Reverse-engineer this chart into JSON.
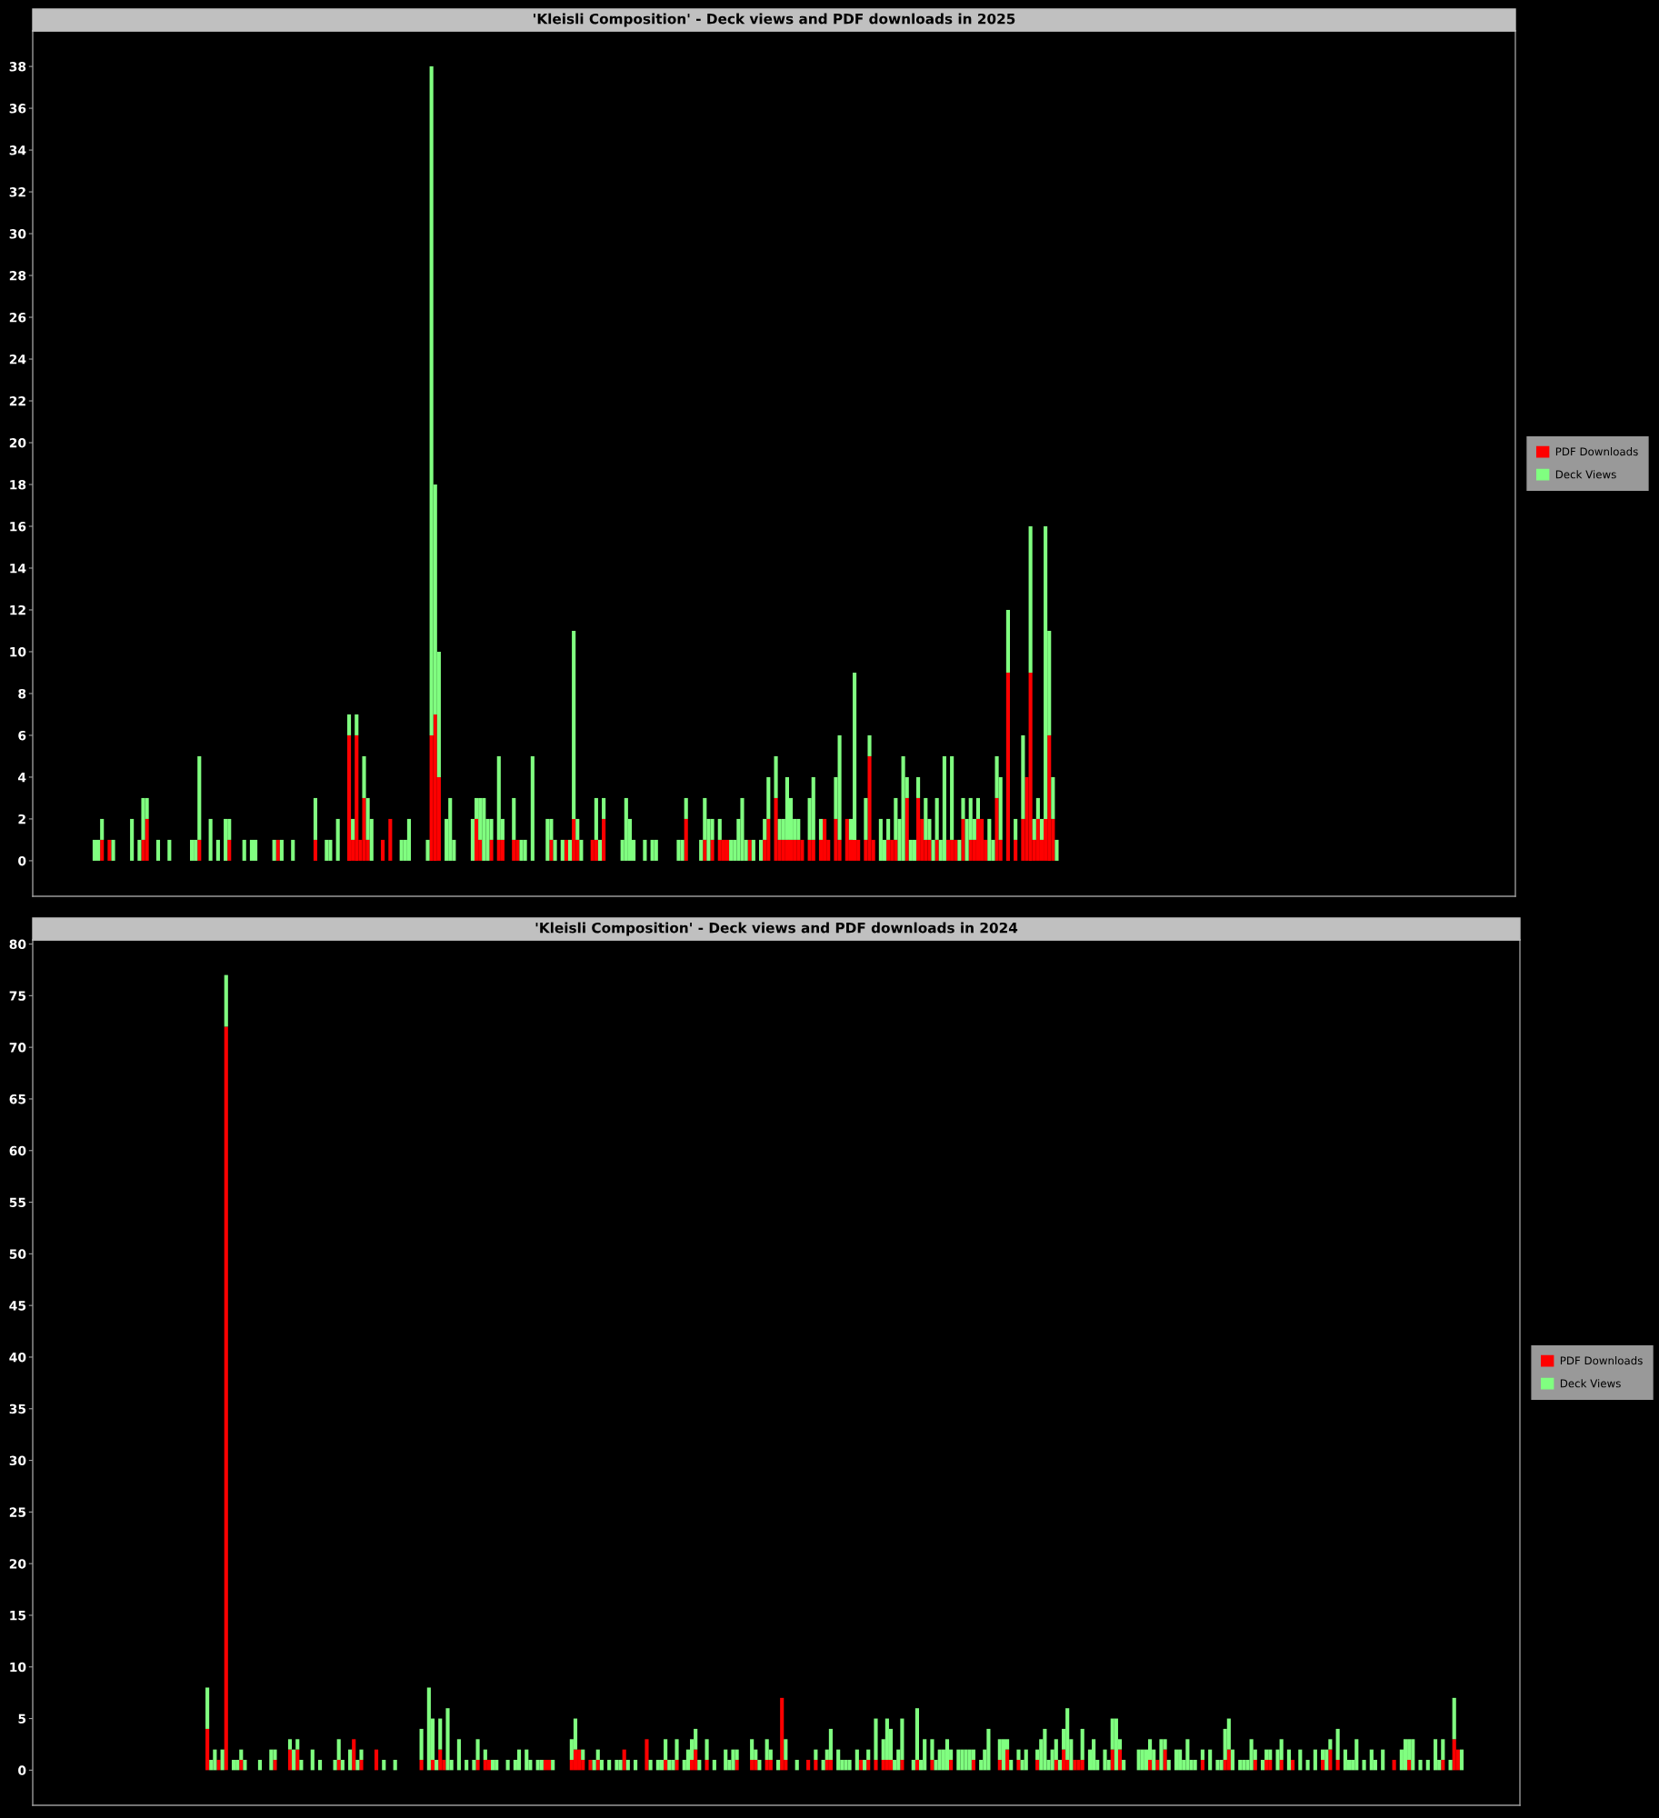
{
  "chart_data": [
    {
      "type": "bar",
      "stacked": true,
      "title": "'Kleisli Composition' - Deck views and PDF downloads in 2025",
      "legend": "right",
      "grid": false,
      "tick_labels": "y",
      "ylim": [
        -1.7,
        39.7
      ],
      "yticks": [
        0,
        2,
        4,
        6,
        8,
        10,
        12,
        14,
        16,
        18,
        20,
        22,
        24,
        26,
        28,
        30,
        32,
        34,
        36,
        38
      ],
      "categories": [
        null,
        null,
        null,
        null,
        null,
        null,
        null,
        null,
        null,
        null,
        null,
        null,
        null,
        null,
        null,
        null,
        null,
        null,
        null,
        null,
        null,
        null,
        null,
        null,
        null,
        null,
        null,
        null,
        null,
        null,
        null,
        null,
        null,
        null,
        null,
        null,
        null,
        null,
        null,
        null,
        null,
        null,
        null,
        null,
        null,
        null,
        null,
        null,
        null,
        null,
        null,
        null,
        null,
        null,
        null,
        null,
        null,
        null,
        null,
        null,
        null,
        null,
        null,
        null,
        null,
        null,
        null,
        null,
        null,
        null,
        null,
        null,
        null,
        null,
        null,
        null,
        null,
        null,
        null,
        null,
        null,
        null,
        null,
        null,
        null,
        null,
        null,
        null,
        null,
        null,
        null,
        null,
        null,
        null,
        null,
        null,
        null,
        null,
        null,
        null,
        null,
        null,
        null,
        null,
        null,
        null,
        null,
        null,
        null,
        null,
        null,
        null,
        null,
        null,
        null,
        null,
        null,
        null,
        null,
        null,
        null,
        null,
        null,
        null,
        null,
        null,
        null,
        null,
        null,
        null,
        null,
        null,
        null,
        null,
        null,
        null,
        null,
        null,
        null,
        null,
        null,
        null,
        null,
        null,
        null,
        null,
        null,
        null,
        null,
        null,
        null,
        null,
        null,
        null,
        null,
        null,
        null,
        null,
        null,
        null,
        null,
        null,
        null,
        null,
        null,
        null,
        null,
        null,
        null,
        null,
        null,
        null,
        null,
        null,
        null,
        null,
        null,
        null,
        null,
        null,
        null,
        null,
        null,
        null,
        null,
        null,
        null,
        null,
        null,
        null,
        null,
        null,
        null,
        null,
        null,
        null,
        null,
        null,
        null,
        null,
        null,
        null,
        null,
        null,
        null,
        null,
        null,
        null,
        null,
        null,
        null,
        null,
        null,
        null,
        null,
        null,
        null,
        null,
        null,
        null,
        null,
        null,
        null,
        null,
        null,
        null,
        null,
        null,
        null,
        null,
        null,
        null,
        null,
        null,
        null,
        null,
        null,
        null,
        null,
        null,
        null,
        null,
        null,
        null,
        null,
        null,
        null,
        null,
        null,
        null,
        null,
        null,
        null,
        null,
        null,
        null,
        null,
        null,
        null,
        null,
        null,
        null,
        null,
        null,
        null,
        null,
        null,
        null,
        null,
        null,
        null,
        null,
        null,
        null,
        null,
        null,
        null,
        null,
        null,
        null,
        null,
        null,
        null,
        null,
        null,
        null,
        null,
        null,
        null,
        null,
        null,
        null,
        null,
        null,
        null,
        null,
        null,
        null,
        null,
        null,
        null,
        null,
        null,
        null,
        null,
        null,
        null,
        null,
        null,
        null,
        null,
        null,
        null,
        null,
        null,
        null,
        null,
        null,
        null,
        null,
        null,
        null,
        null,
        null,
        null,
        null,
        null,
        null,
        null,
        null,
        null,
        null,
        null,
        null,
        null,
        null,
        null,
        null,
        null,
        null,
        null,
        null,
        null,
        null,
        null,
        null,
        null,
        null,
        null,
        null,
        null,
        null,
        null,
        null,
        null,
        null,
        null,
        null,
        null,
        null,
        null,
        null,
        null,
        null,
        null,
        null,
        null,
        null,
        null,
        null,
        null,
        null,
        null,
        null,
        null,
        null,
        null,
        null,
        null,
        null,
        null,
        null,
        null,
        null,
        null,
        null,
        null,
        null,
        null,
        null,
        null,
        null,
        null,
        null,
        null,
        null
      ],
      "series": [
        {
          "name": "PDF Downloads",
          "color": "#ff0000",
          "values": [
            null,
            null,
            null,
            null,
            null,
            null,
            null,
            null,
            null,
            null,
            null,
            null,
            null,
            null,
            null,
            null,
            null,
            null,
            1,
            null,
            1,
            null,
            null,
            null,
            null,
            null,
            null,
            null,
            null,
            1,
            2,
            null,
            null,
            null,
            null,
            null,
            null,
            null,
            null,
            null,
            null,
            null,
            null,
            null,
            1,
            null,
            null,
            null,
            null,
            null,
            null,
            null,
            1,
            null,
            null,
            null,
            null,
            null,
            null,
            null,
            null,
            null,
            null,
            null,
            null,
            1,
            null,
            null,
            null,
            null,
            null,
            null,
            null,
            null,
            null,
            1,
            null,
            null,
            null,
            null,
            null,
            null,
            null,
            null,
            6,
            1,
            6,
            1,
            3,
            1,
            null,
            null,
            null,
            1,
            null,
            2,
            null,
            null,
            null,
            null,
            null,
            null,
            null,
            null,
            null,
            null,
            6,
            7,
            4,
            null,
            null,
            null,
            null,
            null,
            null,
            null,
            null,
            null,
            2,
            1,
            null,
            null,
            1,
            null,
            1,
            1,
            null,
            null,
            1,
            1,
            null,
            null,
            null,
            null,
            null,
            null,
            null,
            null,
            1,
            null,
            null,
            null,
            1,
            null,
            2,
            1,
            null,
            null,
            null,
            1,
            1,
            null,
            2,
            null,
            null,
            null,
            null,
            null,
            null,
            null,
            null,
            null,
            null,
            null,
            null,
            null,
            null,
            null,
            null,
            null,
            null,
            null,
            null,
            null,
            2,
            null,
            null,
            null,
            null,
            1,
            null,
            1,
            null,
            1,
            1,
            1,
            null,
            null,
            null,
            null,
            null,
            1,
            null,
            null,
            null,
            1,
            2,
            null,
            3,
            1,
            1,
            1,
            1,
            1,
            1,
            1,
            null,
            1,
            1,
            null,
            1,
            2,
            1,
            null,
            2,
            1,
            null,
            2,
            1,
            1,
            1,
            null,
            1,
            5,
            1,
            null,
            null,
            null,
            1,
            1,
            1,
            null,
            null,
            3,
            null,
            null,
            3,
            2,
            1,
            1,
            null,
            1,
            null,
            null,
            1,
            1,
            1,
            null,
            2,
            null,
            1,
            1,
            2,
            2,
            1,
            null,
            null,
            3,
            1,
            null,
            9,
            null,
            1,
            null,
            2,
            4,
            9,
            1,
            2,
            1,
            2,
            6,
            2,
            null,
            null,
            null,
            null,
            null,
            null,
            null,
            null,
            null,
            null,
            null,
            null,
            null,
            null,
            null,
            null,
            null,
            null,
            null,
            null,
            null,
            null,
            null,
            null,
            null,
            null,
            null,
            null,
            null,
            null,
            null,
            null,
            null,
            null,
            null,
            null,
            null,
            null,
            null,
            null,
            null,
            null,
            null,
            null,
            null,
            null,
            null,
            null,
            null,
            null,
            null,
            null,
            null,
            null,
            null,
            null,
            null,
            null,
            null,
            null,
            null,
            null,
            null,
            null,
            null,
            null,
            null,
            null,
            null,
            null,
            null,
            null,
            null,
            null,
            null,
            null,
            null,
            null,
            null,
            null,
            null,
            null,
            null,
            null,
            null,
            null,
            null,
            null,
            null,
            null,
            null,
            null,
            null,
            null,
            null,
            null,
            null,
            null,
            null,
            null,
            null,
            null,
            null,
            null,
            null,
            null,
            null,
            null,
            null,
            null,
            null,
            null,
            null,
            null,
            null,
            null,
            null,
            null,
            null,
            null,
            null,
            null,
            null
          ]
        },
        {
          "name": "Deck Views",
          "color": "#80ff80",
          "values": [
            null,
            null,
            null,
            null,
            null,
            null,
            null,
            null,
            null,
            null,
            null,
            null,
            null,
            null,
            null,
            null,
            1,
            1,
            1,
            null,
            null,
            1,
            null,
            null,
            null,
            null,
            2,
            null,
            1,
            2,
            1,
            null,
            null,
            1,
            null,
            null,
            1,
            null,
            null,
            null,
            null,
            null,
            1,
            1,
            4,
            null,
            null,
            2,
            null,
            1,
            null,
            2,
            1,
            null,
            null,
            null,
            1,
            null,
            1,
            1,
            null,
            null,
            null,
            null,
            1,
            null,
            1,
            null,
            null,
            1,
            null,
            null,
            null,
            null,
            null,
            2,
            null,
            null,
            1,
            1,
            null,
            2,
            null,
            null,
            1,
            1,
            1,
            null,
            2,
            2,
            2,
            null,
            null,
            null,
            null,
            null,
            null,
            null,
            1,
            1,
            2,
            null,
            null,
            null,
            null,
            1,
            32,
            11,
            6,
            null,
            2,
            3,
            1,
            null,
            null,
            null,
            null,
            2,
            1,
            2,
            3,
            2,
            1,
            null,
            4,
            1,
            null,
            null,
            2,
            null,
            1,
            1,
            null,
            5,
            null,
            null,
            null,
            2,
            1,
            1,
            null,
            1,
            null,
            1,
            9,
            1,
            1,
            null,
            null,
            null,
            2,
            1,
            1,
            null,
            null,
            null,
            null,
            1,
            3,
            2,
            1,
            null,
            null,
            1,
            null,
            1,
            1,
            null,
            null,
            null,
            null,
            null,
            1,
            1,
            1,
            null,
            null,
            null,
            1,
            2,
            2,
            1,
            null,
            1,
            null,
            null,
            1,
            1,
            2,
            3,
            1,
            null,
            1,
            null,
            1,
            1,
            2,
            null,
            2,
            1,
            1,
            3,
            2,
            1,
            1,
            null,
            null,
            2,
            3,
            null,
            1,
            null,
            null,
            null,
            2,
            5,
            null,
            null,
            1,
            8,
            null,
            null,
            2,
            1,
            null,
            null,
            2,
            1,
            1,
            null,
            2,
            2,
            5,
            1,
            1,
            1,
            1,
            null,
            2,
            1,
            1,
            2,
            1,
            5,
            null,
            4,
            null,
            1,
            1,
            2,
            2,
            1,
            1,
            null,
            null,
            2,
            1,
            2,
            3,
            null,
            3,
            null,
            1,
            null,
            4,
            null,
            7,
            1,
            1,
            1,
            14,
            5,
            2,
            1,
            null,
            null,
            null,
            null,
            null,
            null,
            null,
            null,
            null,
            null,
            null,
            null,
            null,
            null,
            null,
            null,
            null,
            null,
            null,
            null,
            null,
            null,
            null,
            null,
            null,
            null,
            null,
            null,
            null,
            null,
            null,
            null,
            null,
            null,
            null,
            null,
            null,
            null,
            null,
            null,
            null,
            null,
            null,
            null,
            null,
            null,
            null,
            null,
            null,
            null,
            null,
            null,
            null,
            null,
            null,
            null,
            null,
            null,
            null,
            null,
            null,
            null,
            null,
            null,
            null,
            null,
            null,
            null,
            null,
            null,
            null,
            null,
            null,
            null,
            null,
            null,
            null,
            null,
            null,
            null,
            null,
            null,
            null,
            null,
            null,
            null,
            null,
            null,
            null,
            null,
            null,
            null,
            null,
            null,
            null,
            null,
            null,
            null,
            null,
            null,
            null,
            null,
            null,
            null,
            null,
            null,
            null,
            null,
            null,
            null,
            null,
            null,
            null,
            null,
            null,
            null,
            null,
            null,
            null,
            null,
            null,
            null
          ]
        }
      ]
    },
    {
      "type": "bar",
      "stacked": true,
      "title": "'Kleisli Composition' - Deck views and PDF downloads in 2024",
      "legend": "right",
      "grid": false,
      "tick_labels": "y",
      "ylim": [
        -3.4,
        80.4
      ],
      "yticks": [
        0,
        5,
        10,
        15,
        20,
        25,
        30,
        35,
        40,
        45,
        50,
        55,
        60,
        65,
        70,
        75,
        80
      ],
      "categories": [
        null,
        null,
        null,
        null,
        null,
        null,
        null,
        null,
        null,
        null,
        null,
        null,
        null,
        null,
        null,
        null,
        null,
        null,
        null,
        null,
        null,
        null,
        null,
        null,
        null,
        null,
        null,
        null,
        null,
        null,
        null,
        null,
        null,
        null,
        null,
        null,
        null,
        null,
        null,
        null,
        null,
        null,
        null,
        null,
        null,
        null,
        null,
        null,
        null,
        null,
        null,
        null,
        null,
        null,
        null,
        null,
        null,
        null,
        null,
        null,
        null,
        null,
        null,
        null,
        null,
        null,
        null,
        null,
        null,
        null,
        null,
        null,
        null,
        null,
        null,
        null,
        null,
        null,
        null,
        null,
        null,
        null,
        null,
        null,
        null,
        null,
        null,
        null,
        null,
        null,
        null,
        null,
        null,
        null,
        null,
        null,
        null,
        null,
        null,
        null,
        null,
        null,
        null,
        null,
        null,
        null,
        null,
        null,
        null,
        null,
        null,
        null,
        null,
        null,
        null,
        null,
        null,
        null,
        null,
        null,
        null,
        null,
        null,
        null,
        null,
        null,
        null,
        null,
        null,
        null,
        null,
        null,
        null,
        null,
        null,
        null,
        null,
        null,
        null,
        null,
        null,
        null,
        null,
        null,
        null,
        null,
        null,
        null,
        null,
        null,
        null,
        null,
        null,
        null,
        null,
        null,
        null,
        null,
        null,
        null,
        null,
        null,
        null,
        null,
        null,
        null,
        null,
        null,
        null,
        null,
        null,
        null,
        null,
        null,
        null,
        null,
        null,
        null,
        null,
        null,
        null,
        null,
        null,
        null,
        null,
        null,
        null,
        null,
        null,
        null,
        null,
        null,
        null,
        null,
        null,
        null,
        null,
        null,
        null,
        null,
        null,
        null,
        null,
        null,
        null,
        null,
        null,
        null,
        null,
        null,
        null,
        null,
        null,
        null,
        null,
        null,
        null,
        null,
        null,
        null,
        null,
        null,
        null,
        null,
        null,
        null,
        null,
        null,
        null,
        null,
        null,
        null,
        null,
        null,
        null,
        null,
        null,
        null,
        null,
        null,
        null,
        null,
        null,
        null,
        null,
        null,
        null,
        null,
        null,
        null,
        null,
        null,
        null,
        null,
        null,
        null,
        null,
        null,
        null,
        null,
        null,
        null,
        null,
        null,
        null,
        null,
        null,
        null,
        null,
        null,
        null,
        null,
        null,
        null,
        null,
        null,
        null,
        null,
        null,
        null,
        null,
        null,
        null,
        null,
        null,
        null,
        null,
        null,
        null,
        null,
        null,
        null,
        null,
        null,
        null,
        null,
        null,
        null,
        null,
        null,
        null,
        null,
        null,
        null,
        null,
        null,
        null,
        null,
        null,
        null,
        null,
        null,
        null,
        null,
        null,
        null,
        null,
        null,
        null,
        null,
        null,
        null,
        null,
        null,
        null,
        null,
        null,
        null,
        null,
        null,
        null,
        null,
        null,
        null,
        null,
        null,
        null,
        null,
        null,
        null,
        null,
        null,
        null,
        null,
        null,
        null,
        null,
        null,
        null,
        null,
        null,
        null,
        null,
        null,
        null,
        null,
        null,
        null,
        null,
        null,
        null,
        null,
        null,
        null,
        null,
        null,
        null,
        null,
        null,
        null,
        null,
        null,
        null,
        null,
        null,
        null,
        null,
        null,
        null,
        null,
        null,
        null,
        null,
        null,
        null,
        null,
        null,
        null,
        null,
        null,
        null,
        null,
        null,
        null,
        null,
        null
      ],
      "series": [
        {
          "name": "PDF Downloads",
          "color": "#ff0000",
          "values": [
            null,
            null,
            null,
            null,
            null,
            null,
            null,
            null,
            null,
            null,
            null,
            null,
            null,
            null,
            null,
            null,
            null,
            null,
            null,
            null,
            null,
            null,
            null,
            null,
            null,
            null,
            null,
            null,
            null,
            null,
            null,
            null,
            null,
            null,
            null,
            null,
            null,
            null,
            null,
            null,
            null,
            null,
            null,
            null,
            null,
            null,
            4,
            null,
            null,
            1,
            null,
            72,
            null,
            null,
            null,
            1,
            null,
            null,
            null,
            null,
            null,
            null,
            null,
            null,
            1,
            null,
            null,
            null,
            2,
            null,
            2,
            null,
            null,
            null,
            null,
            null,
            null,
            null,
            null,
            null,
            null,
            1,
            null,
            null,
            null,
            3,
            null,
            1,
            null,
            null,
            null,
            2,
            null,
            null,
            null,
            null,
            null,
            null,
            null,
            null,
            null,
            null,
            null,
            1,
            null,
            null,
            1,
            null,
            2,
            1,
            null,
            null,
            null,
            null,
            null,
            null,
            null,
            null,
            1,
            null,
            1,
            1,
            null,
            null,
            null,
            null,
            null,
            null,
            null,
            null,
            null,
            null,
            null,
            null,
            null,
            null,
            1,
            1,
            null,
            null,
            null,
            null,
            null,
            1,
            2,
            2,
            1,
            null,
            1,
            null,
            1,
            null,
            null,
            null,
            null,
            null,
            null,
            2,
            null,
            null,
            null,
            null,
            null,
            3,
            null,
            null,
            null,
            null,
            1,
            null,
            null,
            1,
            null,
            null,
            null,
            1,
            2,
            null,
            null,
            1,
            null,
            null,
            null,
            null,
            null,
            null,
            null,
            1,
            null,
            null,
            null,
            1,
            1,
            null,
            null,
            1,
            1,
            null,
            null,
            7,
            1,
            null,
            null,
            null,
            null,
            null,
            1,
            null,
            1,
            null,
            null,
            1,
            1,
            null,
            null,
            null,
            null,
            null,
            null,
            null,
            1,
            null,
            1,
            null,
            1,
            null,
            1,
            1,
            1,
            null,
            null,
            1,
            null,
            null,
            null,
            1,
            null,
            null,
            null,
            1,
            null,
            null,
            null,
            null,
            1,
            null,
            null,
            null,
            null,
            null,
            1,
            null,
            null,
            null,
            null,
            null,
            null,
            1,
            null,
            2,
            null,
            null,
            1,
            null,
            null,
            null,
            null,
            1,
            null,
            null,
            null,
            null,
            1,
            null,
            2,
            1,
            null,
            1,
            1,
            1,
            null,
            null,
            null,
            null,
            null,
            null,
            null,
            2,
            null,
            2,
            null,
            null,
            null,
            null,
            null,
            null,
            null,
            1,
            null,
            1,
            null,
            2,
            null,
            null,
            null,
            null,
            null,
            null,
            null,
            null,
            null,
            1,
            null,
            null,
            null,
            null,
            null,
            1,
            2,
            null,
            null,
            null,
            null,
            null,
            null,
            1,
            null,
            null,
            1,
            1,
            null,
            null,
            1,
            null,
            null,
            1,
            null,
            null,
            null,
            null,
            null,
            null,
            null,
            1,
            null,
            2,
            null,
            1,
            null,
            null,
            null,
            null,
            null,
            null,
            null,
            null,
            null,
            null,
            null,
            null,
            null,
            null,
            1,
            null,
            null,
            null,
            1,
            null,
            null,
            null,
            null,
            null,
            null,
            null,
            null,
            1,
            null,
            null,
            3,
            2,
            null,
            null,
            null,
            null,
            null,
            null,
            null,
            null,
            null,
            null,
            null,
            null,
            null,
            null,
            null,
            null
          ]
        },
        {
          "name": "Deck Views",
          "color": "#80ff80",
          "values": [
            null,
            null,
            null,
            null,
            null,
            null,
            null,
            null,
            null,
            null,
            null,
            null,
            null,
            null,
            null,
            null,
            null,
            null,
            null,
            null,
            null,
            null,
            null,
            null,
            null,
            null,
            null,
            null,
            null,
            null,
            null,
            null,
            null,
            null,
            null,
            null,
            null,
            null,
            null,
            null,
            null,
            null,
            null,
            null,
            null,
            null,
            4,
            1,
            2,
            null,
            2,
            5,
            null,
            1,
            1,
            1,
            1,
            null,
            null,
            null,
            1,
            null,
            null,
            2,
            1,
            null,
            null,
            null,
            1,
            2,
            1,
            1,
            null,
            null,
            2,
            null,
            1,
            null,
            null,
            null,
            1,
            2,
            1,
            null,
            2,
            null,
            1,
            1,
            null,
            null,
            null,
            null,
            null,
            1,
            null,
            null,
            1,
            null,
            null,
            null,
            null,
            null,
            null,
            3,
            null,
            8,
            4,
            1,
            3,
            null,
            6,
            1,
            null,
            3,
            null,
            1,
            null,
            1,
            2,
            null,
            1,
            null,
            1,
            1,
            null,
            null,
            1,
            null,
            1,
            2,
            null,
            2,
            1,
            null,
            1,
            1,
            null,
            null,
            1,
            null,
            null,
            null,
            null,
            2,
            3,
            null,
            1,
            null,
            null,
            1,
            1,
            1,
            null,
            1,
            null,
            1,
            1,
            null,
            1,
            null,
            1,
            null,
            null,
            null,
            1,
            null,
            1,
            1,
            2,
            1,
            1,
            2,
            null,
            1,
            2,
            2,
            2,
            1,
            null,
            2,
            null,
            1,
            null,
            null,
            2,
            1,
            2,
            1,
            null,
            null,
            null,
            2,
            1,
            1,
            null,
            2,
            1,
            null,
            1,
            null,
            2,
            null,
            null,
            1,
            null,
            null,
            null,
            null,
            1,
            null,
            1,
            1,
            3,
            null,
            2,
            1,
            1,
            1,
            null,
            2,
            null,
            1,
            1,
            null,
            4,
            null,
            2,
            4,
            3,
            1,
            2,
            4,
            null,
            null,
            1,
            5,
            1,
            3,
            null,
            2,
            1,
            2,
            2,
            3,
            1,
            null,
            2,
            2,
            2,
            2,
            1,
            null,
            1,
            2,
            4,
            null,
            null,
            2,
            3,
            1,
            1,
            null,
            1,
            1,
            2,
            null,
            null,
            1,
            3,
            4,
            1,
            2,
            2,
            1,
            2,
            5,
            3,
            null,
            null,
            3,
            null,
            2,
            3,
            1,
            null,
            2,
            1,
            3,
            5,
            1,
            1,
            null,
            null,
            null,
            2,
            2,
            2,
            2,
            2,
            null,
            3,
            1,
            1,
            null,
            2,
            2,
            1,
            3,
            1,
            1,
            null,
            1,
            null,
            2,
            null,
            1,
            1,
            3,
            3,
            2,
            null,
            1,
            1,
            1,
            3,
            1,
            null,
            1,
            1,
            1,
            null,
            2,
            2,
            null,
            2,
            null,
            null,
            2,
            null,
            1,
            null,
            2,
            null,
            1,
            2,
            1,
            null,
            3,
            null,
            2,
            1,
            1,
            3,
            null,
            1,
            null,
            2,
            1,
            null,
            2,
            null,
            null,
            null,
            null,
            2,
            3,
            2,
            3,
            null,
            1,
            null,
            1,
            null,
            3,
            1,
            2,
            null,
            1,
            4,
            null,
            2,
            null,
            null,
            null,
            null,
            null,
            null,
            null,
            null,
            null,
            null,
            null,
            null,
            null,
            null,
            null
          ]
        }
      ]
    }
  ]
}
